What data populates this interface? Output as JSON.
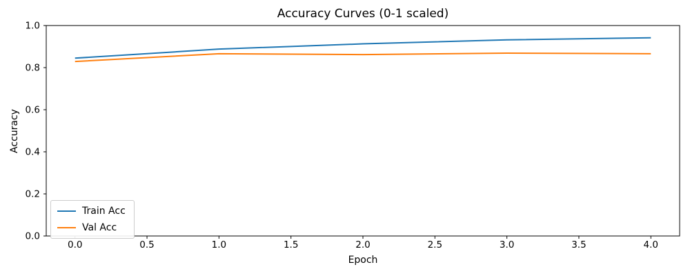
{
  "chart_data": {
    "type": "line",
    "title": "Accuracy Curves (0-1 scaled)",
    "xlabel": "Epoch",
    "ylabel": "Accuracy",
    "xlim": [
      -0.2,
      4.2
    ],
    "ylim": [
      0,
      1
    ],
    "grid": false,
    "legend_position": "lower left",
    "x_ticks": [
      {
        "label": "0.0",
        "value": 0.0
      },
      {
        "label": "0.5",
        "value": 0.5
      },
      {
        "label": "1.0",
        "value": 1.0
      },
      {
        "label": "1.5",
        "value": 1.5
      },
      {
        "label": "2.0",
        "value": 2.0
      },
      {
        "label": "2.5",
        "value": 2.5
      },
      {
        "label": "3.0",
        "value": 3.0
      },
      {
        "label": "3.5",
        "value": 3.5
      },
      {
        "label": "4.0",
        "value": 4.0
      }
    ],
    "y_ticks": [
      {
        "label": "0.0",
        "value": 0.0
      },
      {
        "label": "0.2",
        "value": 0.2
      },
      {
        "label": "0.4",
        "value": 0.4
      },
      {
        "label": "0.6",
        "value": 0.6
      },
      {
        "label": "0.8",
        "value": 0.8
      },
      {
        "label": "1.0",
        "value": 1.0
      }
    ],
    "series": [
      {
        "name": "Train Acc",
        "color": "#1f77b4",
        "x": [
          0,
          1,
          2,
          3,
          4
        ],
        "values": [
          0.845,
          0.888,
          0.913,
          0.932,
          0.942
        ]
      },
      {
        "name": "Val Acc",
        "color": "#ff7f0e",
        "x": [
          0,
          1,
          2,
          3,
          4
        ],
        "values": [
          0.829,
          0.866,
          0.862,
          0.869,
          0.866
        ]
      }
    ]
  }
}
